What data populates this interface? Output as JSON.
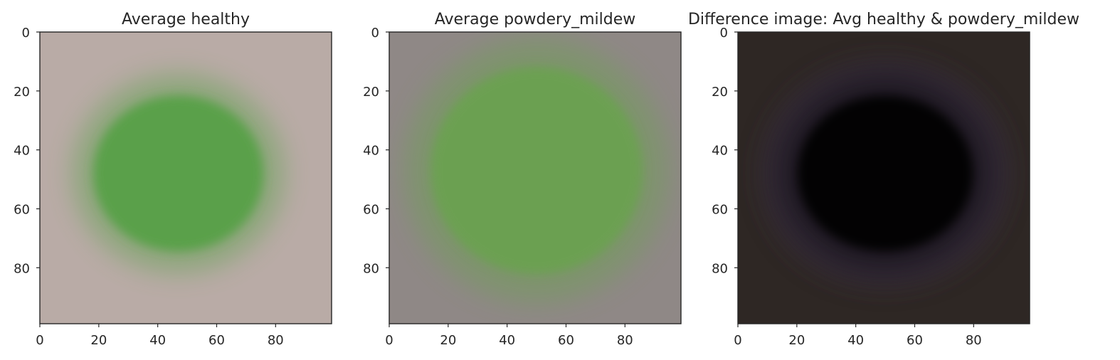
{
  "chart_data": [
    {
      "type": "heatmap",
      "title": "Average healthy",
      "xlim": [
        0,
        99
      ],
      "ylim": [
        99,
        0
      ],
      "xticks": [
        0,
        20,
        40,
        60,
        80
      ],
      "yticks": [
        0,
        20,
        40,
        60,
        80
      ],
      "grid": false,
      "background_color": "#b9aba6",
      "feature_color": "#55a044",
      "feature_center": [
        47,
        48
      ],
      "feature_radius": [
        32,
        30
      ]
    },
    {
      "type": "heatmap",
      "title": "Average powdery_mildew",
      "xlim": [
        0,
        99
      ],
      "ylim": [
        99,
        0
      ],
      "xticks": [
        0,
        20,
        40,
        60,
        80
      ],
      "yticks": [
        0,
        20,
        40,
        60,
        80
      ],
      "grid": false,
      "background_color": "#8f8886",
      "feature_color": "#6aa250",
      "feature_center": [
        50,
        47
      ],
      "feature_radius": [
        40,
        40
      ]
    },
    {
      "type": "heatmap",
      "title": "Difference image: Avg healthy & powdery_mildew",
      "xlim": [
        0,
        99
      ],
      "ylim": [
        99,
        0
      ],
      "xticks": [
        0,
        20,
        40,
        60,
        80
      ],
      "yticks": [
        0,
        20,
        40,
        60,
        80
      ],
      "grid": false,
      "background_color": "#2e2724",
      "feature_color": "#020402",
      "feature_center": [
        50,
        48
      ],
      "feature_radius": [
        33,
        30
      ],
      "ring_color": "#3e3048"
    }
  ]
}
